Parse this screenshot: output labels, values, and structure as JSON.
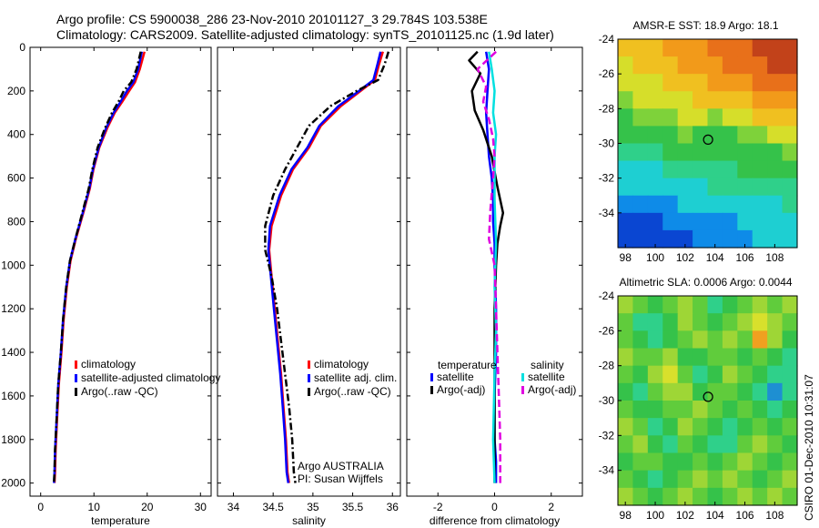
{
  "title_line1": "Argo profile: CS 5900038_286 23-Nov-2010 20101127_3 29.784S 103.538E",
  "title_line2": "Climatology: CARS2009. Satellite-adjusted climatology: synTS_20101125.nc (1.9d later)",
  "credit": "CSIRO 01-Dec-2010 10:31:07",
  "chart_data": [
    {
      "type": "line",
      "id": "temperature",
      "xlabel": "temperature",
      "xlim": [
        -2,
        32
      ],
      "ylim": [
        0,
        2060
      ],
      "xticks": [
        0,
        10,
        20,
        30
      ],
      "yticks": [
        0,
        200,
        400,
        600,
        800,
        1000,
        1200,
        1400,
        1600,
        1800,
        2000
      ],
      "y_reversed": true,
      "legend": [
        "climatology",
        "satellite-adjusted climatology",
        "Argo(..raw -QC)"
      ],
      "series": [
        {
          "name": "climatology",
          "color": "#ff0000",
          "dash": "solid",
          "x": [
            19.5,
            18.6,
            17.7,
            16.6,
            15.3,
            13.9,
            12.5,
            11.0,
            9.9,
            9.2,
            8.0,
            6.6,
            5.6,
            4.9,
            4.3,
            3.9,
            3.4,
            3.1,
            2.8,
            2.7,
            2.6
          ],
          "y": [
            20,
            100,
            160,
            200,
            250,
            300,
            370,
            460,
            560,
            650,
            760,
            880,
            980,
            1100,
            1250,
            1400,
            1550,
            1700,
            1850,
            1950,
            2000
          ]
        },
        {
          "name": "satellite-adjusted climatology",
          "color": "#0000ff",
          "dash": "solid",
          "x": [
            19.0,
            18.3,
            17.4,
            16.2,
            15.0,
            13.7,
            12.3,
            10.9,
            9.8,
            9.1,
            7.9,
            6.5,
            5.5,
            4.8,
            4.2,
            3.8,
            3.3,
            3.0,
            2.7,
            2.6,
            2.5
          ],
          "y": [
            20,
            100,
            160,
            200,
            250,
            300,
            370,
            460,
            560,
            650,
            760,
            880,
            980,
            1100,
            1250,
            1400,
            1550,
            1700,
            1850,
            1950,
            2000
          ]
        },
        {
          "name": "Argo(..raw -QC)",
          "color": "#000000",
          "dash": "dashdot",
          "x": [
            18.8,
            18.0,
            17.0,
            15.6,
            14.6,
            13.4,
            12.1,
            10.7,
            9.7,
            9.0,
            7.8,
            6.5,
            5.5,
            4.8,
            4.2,
            3.8,
            3.3,
            3.0,
            2.7,
            2.6,
            2.5
          ],
          "y": [
            20,
            100,
            160,
            200,
            250,
            300,
            370,
            460,
            560,
            650,
            760,
            880,
            980,
            1100,
            1250,
            1400,
            1550,
            1700,
            1850,
            1950,
            2000
          ]
        }
      ]
    },
    {
      "type": "line",
      "id": "salinity",
      "xlabel": "salinity",
      "xlim": [
        33.8,
        36.1
      ],
      "ylim": [
        0,
        2060
      ],
      "xticks": [
        34,
        34.5,
        35,
        35.5,
        36
      ],
      "xticklabels": [
        "34",
        "34.5",
        "35",
        "35.5",
        "36"
      ],
      "y_reversed": true,
      "legend": [
        "climatology",
        "satellite adj. clim.",
        "Argo(..raw -QC)"
      ],
      "annotations": [
        "Argo AUSTRALIA",
        "PI: Susan Wijffels"
      ],
      "series": [
        {
          "name": "climatology",
          "color": "#ff0000",
          "dash": "solid",
          "x": [
            35.88,
            35.83,
            35.78,
            35.6,
            35.35,
            35.1,
            34.95,
            34.75,
            34.6,
            34.48,
            34.45,
            34.48,
            34.52,
            34.56,
            34.6,
            34.63,
            34.66,
            34.68,
            34.7
          ],
          "y": [
            20,
            80,
            150,
            200,
            270,
            360,
            460,
            560,
            680,
            820,
            930,
            1050,
            1200,
            1350,
            1500,
            1650,
            1800,
            1950,
            2000
          ]
        },
        {
          "name": "satellite adj. clim.",
          "color": "#0000ff",
          "dash": "solid",
          "x": [
            35.85,
            35.81,
            35.76,
            35.58,
            35.32,
            35.08,
            34.93,
            34.73,
            34.58,
            34.46,
            34.44,
            34.47,
            34.51,
            34.55,
            34.59,
            34.62,
            34.65,
            34.67,
            34.69
          ],
          "y": [
            20,
            80,
            150,
            200,
            270,
            360,
            460,
            560,
            680,
            820,
            930,
            1050,
            1200,
            1350,
            1500,
            1650,
            1800,
            1950,
            2000
          ]
        },
        {
          "name": "Argo(..raw -QC)",
          "color": "#000000",
          "dash": "dashdot",
          "x": [
            35.95,
            35.9,
            35.82,
            35.55,
            35.22,
            34.95,
            34.8,
            34.65,
            34.5,
            34.4,
            34.4,
            34.48,
            34.55,
            34.6,
            34.65,
            34.7,
            34.74,
            34.76,
            34.78
          ],
          "y": [
            20,
            80,
            150,
            200,
            270,
            360,
            460,
            560,
            680,
            820,
            930,
            1050,
            1200,
            1350,
            1500,
            1650,
            1800,
            1950,
            2000
          ]
        }
      ]
    },
    {
      "type": "line",
      "id": "difference",
      "xlabel": "difference from climatology",
      "xlim": [
        -3.1,
        3.1
      ],
      "ylim": [
        0,
        2060
      ],
      "xticks": [
        -2,
        0,
        2
      ],
      "y_reversed": true,
      "legend": {
        "temperature_heading": "temperature",
        "salinity_heading": "salinity",
        "entries": [
          "satellite",
          "Argo(-adj)",
          "satellite",
          "Argo(-adj)"
        ]
      },
      "series": [
        {
          "name": "temperature satellite",
          "color": "#0000ff",
          "dash": "solid",
          "x": [
            -0.3,
            -0.2,
            -0.25,
            -0.3,
            -0.25,
            -0.2,
            -0.1,
            -0.05,
            -0.05,
            0.0,
            0.0,
            0.05,
            0.05,
            0.0,
            0.0,
            0.05,
            0.05
          ],
          "y": [
            20,
            100,
            200,
            300,
            400,
            500,
            600,
            700,
            800,
            900,
            1000,
            1200,
            1400,
            1600,
            1800,
            1900,
            2000
          ]
        },
        {
          "name": "temperature Argo(-adj)",
          "color": "#000000",
          "dash": "solid",
          "x": [
            -0.6,
            -0.9,
            -0.5,
            -0.8,
            -0.7,
            -0.4,
            -0.1,
            0.1,
            0.3,
            0.2,
            0.1,
            0.05,
            0.0,
            0.0,
            0.0,
            0.0
          ],
          "y": [
            20,
            60,
            120,
            200,
            290,
            380,
            500,
            640,
            760,
            820,
            900,
            1000,
            1200,
            1500,
            1800,
            2000
          ]
        },
        {
          "name": "salinity satellite",
          "color": "#00e0e0",
          "dash": "solid",
          "x": [
            -0.2,
            -0.1,
            0.0,
            -0.05,
            0.05,
            0.0,
            0.0,
            0.05,
            0.0,
            0.05,
            0.0,
            -0.05,
            0.0
          ],
          "y": [
            20,
            100,
            200,
            300,
            400,
            500,
            700,
            900,
            1100,
            1300,
            1500,
            1800,
            2000
          ]
        },
        {
          "name": "salinity Argo(-adj)",
          "color": "#e000e0",
          "dash": "dashed",
          "x": [
            0.05,
            -0.6,
            -0.3,
            -0.4,
            -0.2,
            -0.05,
            0.0,
            -0.05,
            -0.15,
            -0.2,
            0.0,
            0.05,
            0.1,
            0.15,
            0.2,
            0.2
          ],
          "y": [
            20,
            100,
            180,
            250,
            330,
            420,
            500,
            600,
            750,
            880,
            1000,
            1200,
            1400,
            1600,
            1800,
            2000
          ]
        }
      ]
    },
    {
      "type": "heatmap",
      "id": "sst_map",
      "title": "AMSR-E SST: 18.9 Argo: 18.1",
      "xlim": [
        97.5,
        109.5
      ],
      "ylim": [
        -36,
        -24
      ],
      "xticks": [
        98,
        100,
        102,
        104,
        106,
        108
      ],
      "yticks": [
        -24,
        -26,
        -28,
        -30,
        -32,
        -34
      ],
      "colors": [
        "#0a46d2",
        "#0e8be8",
        "#1ecfd2",
        "#2fd08a",
        "#35c24a",
        "#7ed23a",
        "#d6de2a",
        "#f0c020",
        "#f29a1a",
        "#e8701a",
        "#c2421a"
      ],
      "grid": [
        [
          7,
          7,
          7,
          8,
          8,
          8,
          9,
          9,
          9,
          10,
          10,
          10
        ],
        [
          6,
          7,
          7,
          7,
          8,
          8,
          8,
          9,
          9,
          9,
          10,
          10
        ],
        [
          6,
          6,
          6,
          7,
          7,
          7,
          8,
          8,
          8,
          9,
          9,
          9
        ],
        [
          5,
          6,
          6,
          6,
          6,
          7,
          7,
          7,
          7,
          8,
          8,
          8
        ],
        [
          4,
          5,
          5,
          5,
          6,
          6,
          5,
          6,
          6,
          7,
          7,
          7
        ],
        [
          4,
          4,
          4,
          4,
          5,
          4,
          4,
          4,
          5,
          5,
          6,
          6
        ],
        [
          3,
          3,
          3,
          4,
          4,
          4,
          4,
          4,
          4,
          4,
          4,
          5
        ],
        [
          2,
          2,
          2,
          3,
          3,
          3,
          3,
          3,
          4,
          4,
          4,
          4
        ],
        [
          2,
          2,
          2,
          2,
          2,
          2,
          3,
          3,
          3,
          3,
          3,
          3
        ],
        [
          1,
          1,
          1,
          1,
          2,
          2,
          2,
          2,
          2,
          2,
          2,
          3
        ],
        [
          0,
          0,
          0,
          1,
          1,
          1,
          1,
          1,
          2,
          2,
          2,
          2
        ],
        [
          0,
          0,
          0,
          0,
          0,
          1,
          1,
          1,
          1,
          2,
          2,
          2
        ]
      ],
      "marker": {
        "lon": 103.538,
        "lat": -29.784
      }
    },
    {
      "type": "heatmap",
      "id": "sla_map",
      "title": "Altimetric SLA: 0.0006 Argo: 0.0044",
      "xlim": [
        97.5,
        109.5
      ],
      "ylim": [
        -36,
        -24
      ],
      "xticks": [
        98,
        100,
        102,
        104,
        106,
        108
      ],
      "yticks": [
        -24,
        -26,
        -28,
        -30,
        -32,
        -34
      ],
      "colors": [
        "#1e8fd2",
        "#2fd08a",
        "#35c24a",
        "#60cc3c",
        "#9ed636",
        "#d8e02c",
        "#f0a020"
      ],
      "grid": [
        [
          4,
          3,
          2,
          3,
          4,
          3,
          1,
          2,
          3,
          4,
          3,
          4
        ],
        [
          3,
          1,
          1,
          2,
          4,
          3,
          2,
          3,
          4,
          5,
          4,
          3
        ],
        [
          3,
          2,
          1,
          2,
          3,
          4,
          3,
          4,
          3,
          6,
          4,
          2
        ],
        [
          4,
          3,
          3,
          4,
          2,
          2,
          3,
          3,
          2,
          3,
          2,
          1
        ],
        [
          3,
          2,
          4,
          5,
          3,
          1,
          2,
          4,
          3,
          2,
          1,
          1
        ],
        [
          2,
          1,
          3,
          4,
          4,
          2,
          3,
          3,
          2,
          1,
          0,
          1
        ],
        [
          3,
          2,
          2,
          3,
          3,
          4,
          3,
          2,
          3,
          2,
          1,
          2
        ],
        [
          4,
          3,
          1,
          2,
          4,
          3,
          2,
          1,
          2,
          3,
          2,
          3
        ],
        [
          3,
          4,
          2,
          1,
          3,
          2,
          1,
          1,
          3,
          4,
          3,
          2
        ],
        [
          2,
          3,
          3,
          2,
          2,
          3,
          2,
          3,
          4,
          3,
          2,
          3
        ],
        [
          3,
          2,
          1,
          2,
          3,
          4,
          3,
          4,
          3,
          2,
          3,
          4
        ],
        [
          4,
          3,
          2,
          3,
          4,
          3,
          2,
          3,
          4,
          3,
          4,
          3
        ]
      ],
      "marker": {
        "lon": 103.538,
        "lat": -29.784
      }
    }
  ]
}
